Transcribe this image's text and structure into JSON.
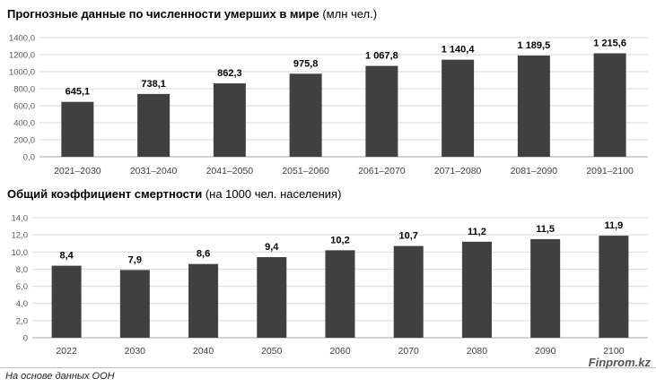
{
  "chart_data": [
    {
      "type": "bar",
      "title": "Прогнозные данные по численности умерших в мире",
      "subtitle": "(млн чел.)",
      "categories": [
        "2021–2030",
        "2031–2040",
        "2041–2050",
        "2051–2060",
        "2061–2070",
        "2071–2080",
        "2081–2090",
        "2091–2100"
      ],
      "values": [
        645.1,
        738.1,
        862.3,
        975.8,
        1067.8,
        1140.4,
        1189.5,
        1215.6
      ],
      "value_labels": [
        "645,1",
        "738,1",
        "862,3",
        "975,8",
        "1 067,8",
        "1 140,4",
        "1 189,5",
        "1 215,6"
      ],
      "ylim": [
        0,
        1400
      ],
      "yticks": [
        "0,0",
        "200,0",
        "400,0",
        "600,0",
        "800,0",
        "1000,0",
        "1200,0",
        "1400,0"
      ],
      "grid": true,
      "bar_color": "#404040"
    },
    {
      "type": "bar",
      "title": "Общий коэффициент смертности",
      "subtitle": "(на 1000 чел. населения)",
      "categories": [
        "2022",
        "2030",
        "2040",
        "2050",
        "2060",
        "2070",
        "2080",
        "2090",
        "2100"
      ],
      "values": [
        8.4,
        7.9,
        8.6,
        9.4,
        10.2,
        10.7,
        11.2,
        11.5,
        11.9
      ],
      "value_labels": [
        "8,4",
        "7,9",
        "8,6",
        "9,4",
        "10,2",
        "10,7",
        "11,2",
        "11,5",
        "11,9"
      ],
      "ylim": [
        0,
        14
      ],
      "yticks": [
        "0",
        "2,0",
        "4,0",
        "6,0",
        "8,0",
        "10,0",
        "12,0",
        "14,0"
      ],
      "grid": true,
      "bar_color": "#404040"
    }
  ],
  "footer": {
    "source": "На основе данных ООН",
    "brand": "Finprom.kz"
  }
}
